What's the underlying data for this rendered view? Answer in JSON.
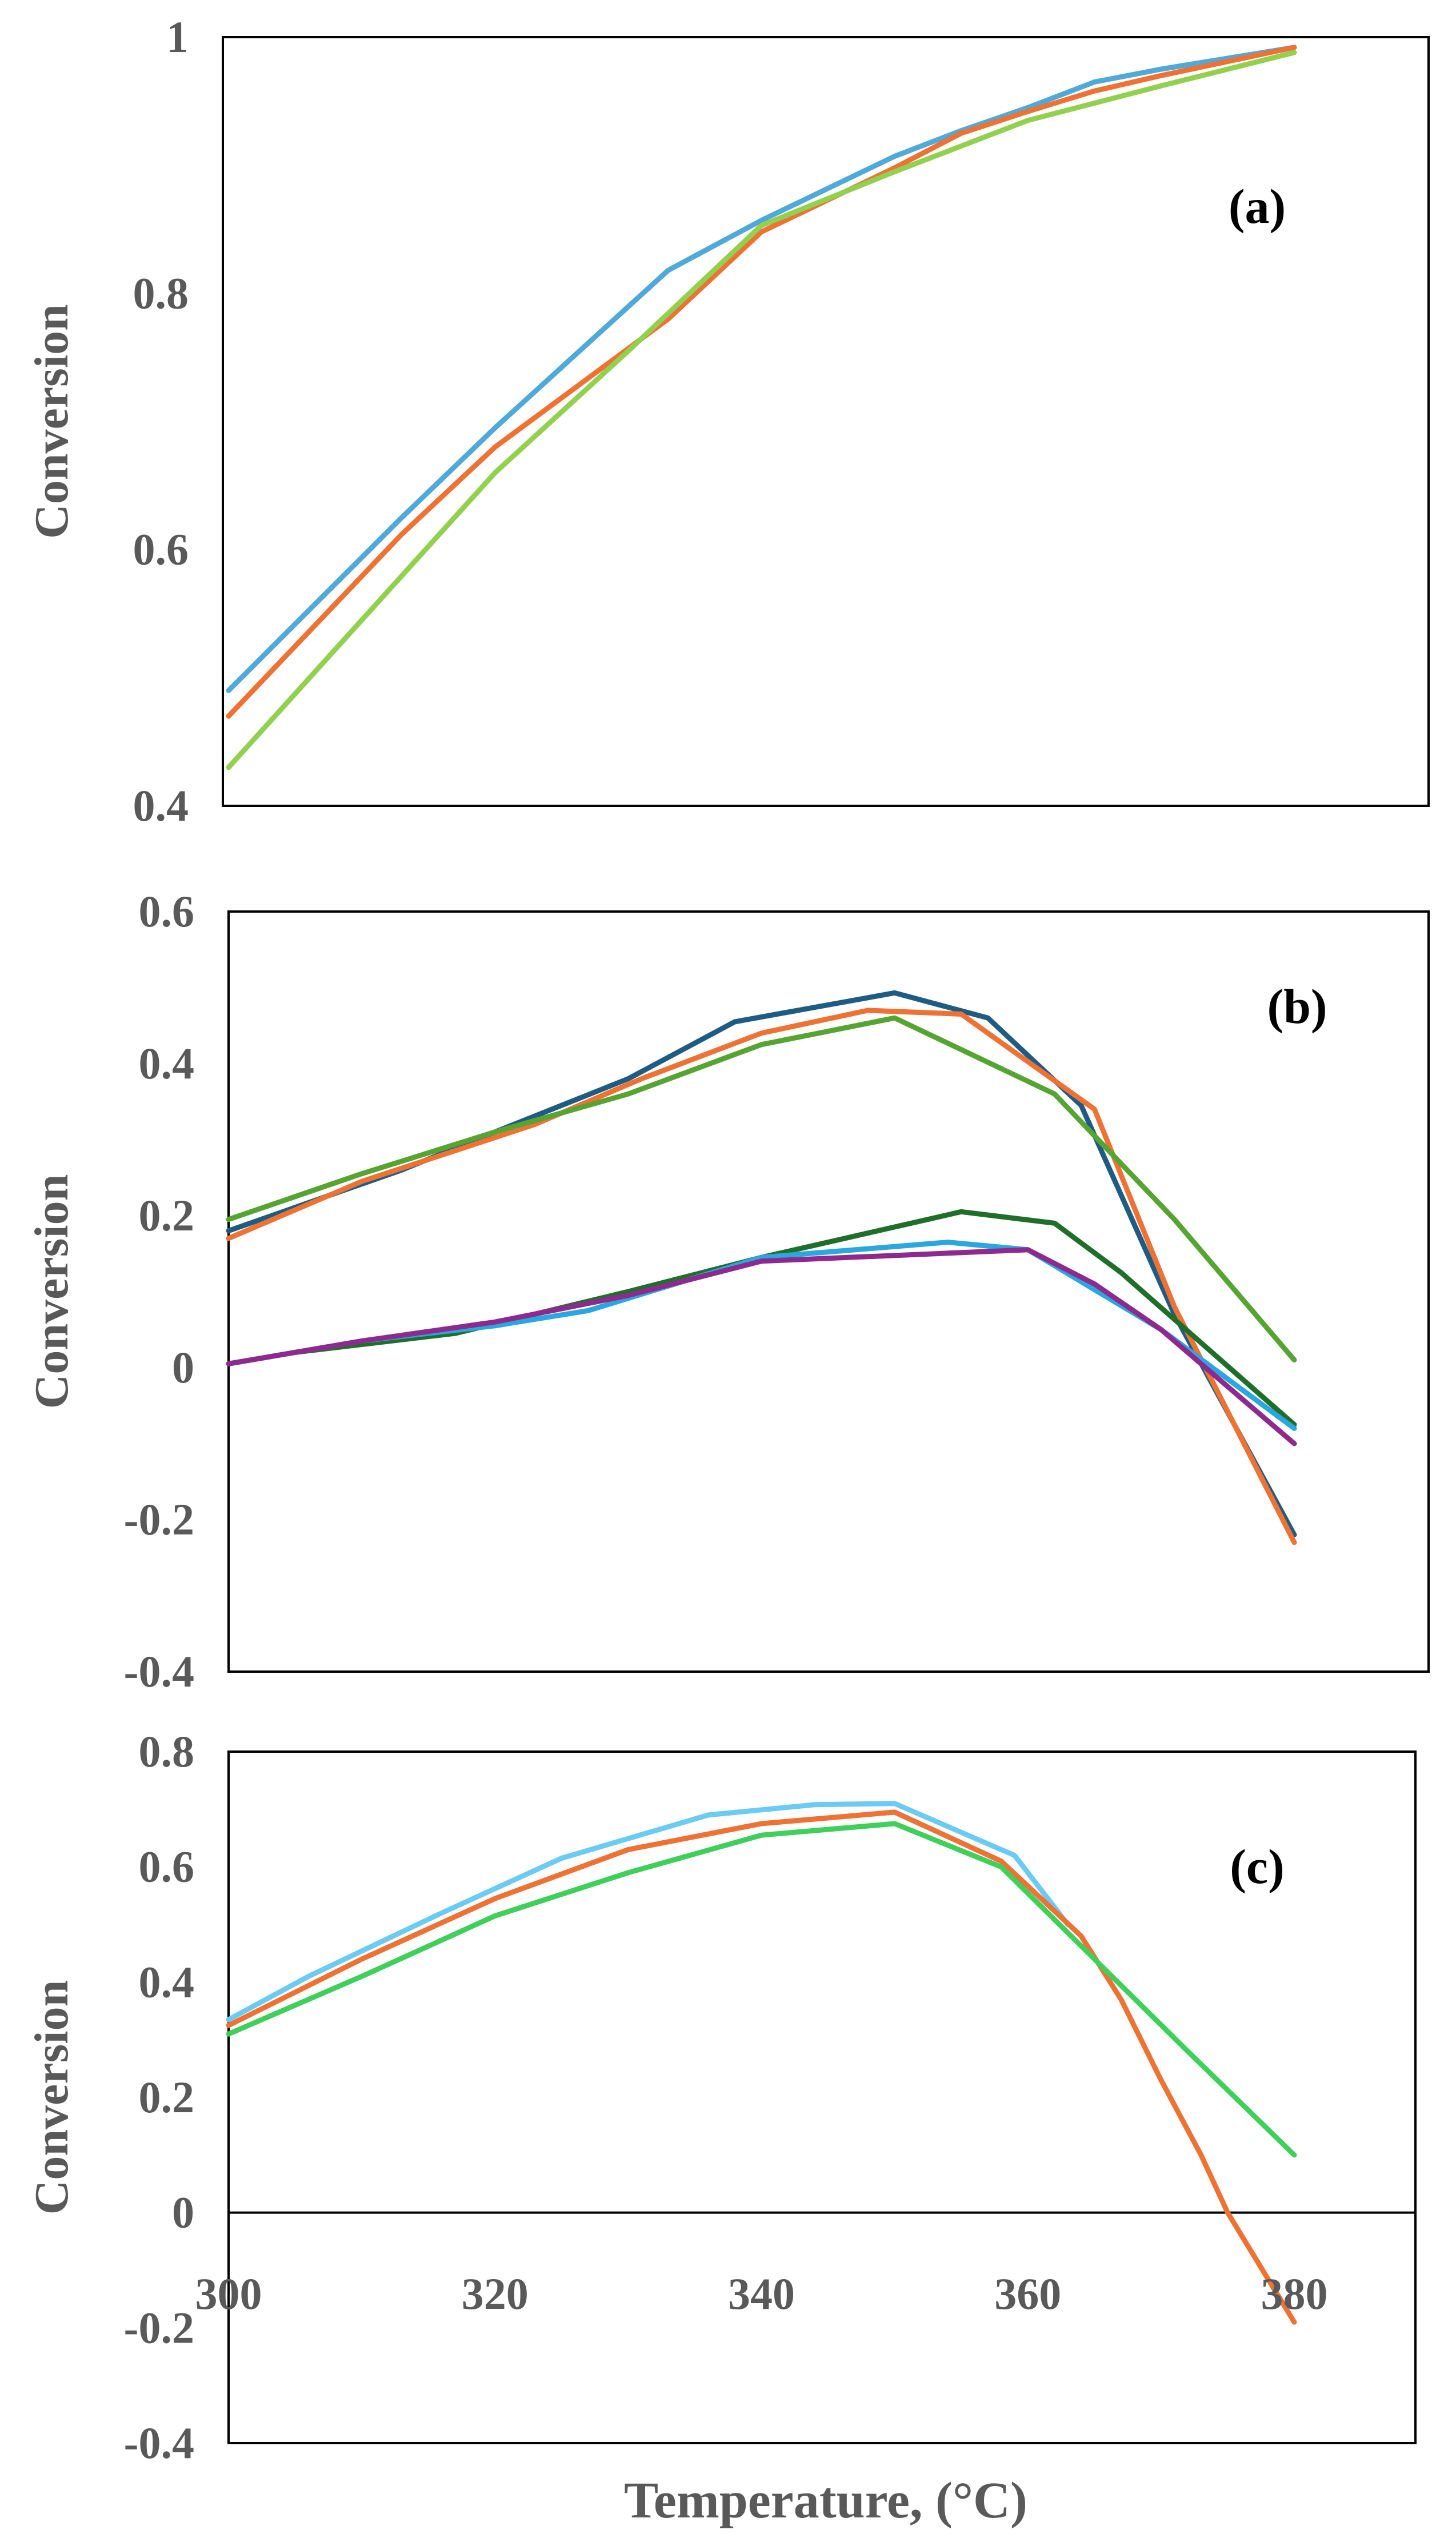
{
  "chart_data": [
    {
      "type": "line",
      "panel_label": "(a)",
      "ylabel": "Conversion",
      "ylim": [
        0.4,
        1
      ],
      "yticks": [
        "0.4",
        "0.6",
        "0.8",
        "1"
      ],
      "series": [
        {
          "name": "series-1",
          "color": "#4FA9D9",
          "x": [
            300,
            313,
            320,
            333,
            340,
            350,
            355,
            360,
            365,
            370,
            380
          ],
          "y": [
            0.49,
            0.625,
            0.695,
            0.818,
            0.857,
            0.907,
            0.927,
            0.945,
            0.965,
            0.975,
            0.992
          ]
        },
        {
          "name": "series-2",
          "color": "#ED7233",
          "x": [
            300,
            313,
            320,
            333,
            340,
            350,
            355,
            360,
            365,
            370,
            380
          ],
          "y": [
            0.47,
            0.612,
            0.68,
            0.78,
            0.848,
            0.898,
            0.925,
            0.942,
            0.958,
            0.97,
            0.992
          ]
        },
        {
          "name": "series-3",
          "color": "#92D050",
          "x": [
            300,
            310,
            320,
            330,
            340,
            350,
            360,
            370,
            380
          ],
          "y": [
            0.43,
            0.545,
            0.66,
            0.755,
            0.853,
            0.895,
            0.935,
            0.962,
            0.988
          ]
        }
      ]
    },
    {
      "type": "line",
      "panel_label": "(b)",
      "ylabel": "Conversion",
      "ylim": [
        -0.4,
        0.6
      ],
      "yticks": [
        "-0.4",
        "-0.2",
        "0",
        "0.2",
        "0.4",
        "0.6"
      ],
      "series": [
        {
          "name": "series-1",
          "color": "#1F5C84",
          "x": [
            300,
            313,
            320,
            330,
            338,
            350,
            357,
            364,
            371,
            380
          ],
          "y": [
            0.18,
            0.26,
            0.31,
            0.38,
            0.455,
            0.493,
            0.46,
            0.345,
            0.07,
            -0.22
          ]
        },
        {
          "name": "series-2",
          "color": "#ED7233",
          "x": [
            300,
            310,
            323,
            331,
            340,
            348,
            355,
            365,
            371,
            380
          ],
          "y": [
            0.17,
            0.245,
            0.32,
            0.38,
            0.44,
            0.47,
            0.465,
            0.34,
            0.08,
            -0.23
          ]
        },
        {
          "name": "series-3",
          "color": "#56A532",
          "x": [
            300,
            310,
            320,
            330,
            340,
            350,
            362,
            371,
            380
          ],
          "y": [
            0.195,
            0.255,
            0.31,
            0.36,
            0.425,
            0.46,
            0.36,
            0.195,
            0.01
          ]
        },
        {
          "name": "series-4",
          "color": "#1F6F2A",
          "x": [
            300,
            305,
            317,
            330,
            340,
            355,
            362,
            367,
            380
          ],
          "y": [
            0.005,
            0.02,
            0.045,
            0.1,
            0.145,
            0.205,
            0.19,
            0.125,
            -0.075
          ]
        },
        {
          "name": "series-5",
          "color": "#2AA7DE",
          "x": [
            300,
            310,
            320,
            327,
            340,
            354,
            360,
            370,
            380
          ],
          "y": [
            0.005,
            0.035,
            0.055,
            0.075,
            0.145,
            0.165,
            0.155,
            0.05,
            -0.08
          ]
        },
        {
          "name": "series-6",
          "color": "#8E2A8F",
          "x": [
            300,
            310,
            320,
            330,
            340,
            360,
            365,
            370,
            380
          ],
          "y": [
            0.005,
            0.035,
            0.06,
            0.095,
            0.14,
            0.155,
            0.11,
            0.05,
            -0.1
          ]
        }
      ]
    },
    {
      "type": "line",
      "panel_label": "(c)",
      "ylabel": "Conversion",
      "xlabel": "Temperature, (°C)",
      "ylim": [
        -0.4,
        0.8
      ],
      "yticks": [
        "-0.4",
        "-0.2",
        "0",
        "0.2",
        "0.4",
        "0.6",
        "0.8"
      ],
      "xticks": [
        "300",
        "320",
        "340",
        "360",
        "380"
      ],
      "xlim": [
        300,
        380
      ],
      "series": [
        {
          "name": "series-1",
          "color": "#6CCBF2",
          "x": [
            300,
            306,
            316,
            325,
            336,
            344,
            350,
            359,
            363
          ],
          "y": [
            0.335,
            0.41,
            0.52,
            0.615,
            0.69,
            0.708,
            0.71,
            0.62,
            0.5
          ]
        },
        {
          "name": "series-2",
          "color": "#ED7233",
          "x": [
            300,
            310,
            320,
            330,
            340,
            350,
            358,
            364,
            367,
            370,
            373,
            375,
            380
          ],
          "y": [
            0.325,
            0.44,
            0.545,
            0.63,
            0.675,
            0.695,
            0.61,
            0.48,
            0.37,
            0.23,
            0.1,
            0.0,
            -0.19
          ]
        },
        {
          "name": "series-3",
          "color": "#3FCF5A",
          "x": [
            300,
            310,
            320,
            330,
            340,
            350,
            358,
            365,
            372,
            380
          ],
          "y": [
            0.31,
            0.41,
            0.515,
            0.59,
            0.655,
            0.675,
            0.6,
            0.44,
            0.28,
            0.1
          ]
        }
      ]
    }
  ]
}
